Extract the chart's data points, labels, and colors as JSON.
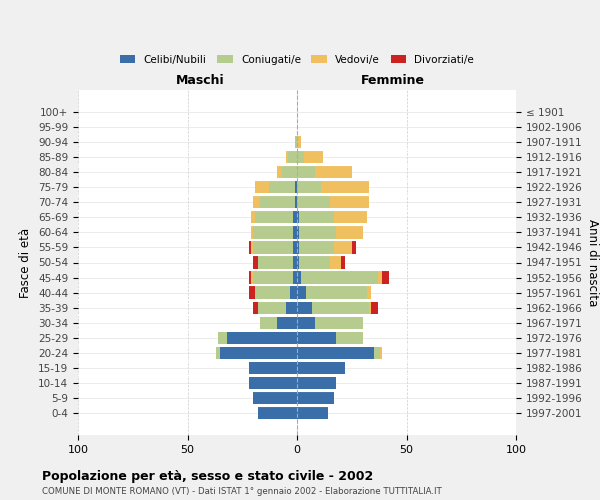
{
  "age_groups": [
    "100+",
    "95-99",
    "90-94",
    "85-89",
    "80-84",
    "75-79",
    "70-74",
    "65-69",
    "60-64",
    "55-59",
    "50-54",
    "45-49",
    "40-44",
    "35-39",
    "30-34",
    "25-29",
    "20-24",
    "15-19",
    "10-14",
    "5-9",
    "0-4"
  ],
  "birth_years": [
    "≤ 1901",
    "1902-1906",
    "1907-1911",
    "1912-1916",
    "1917-1921",
    "1922-1926",
    "1927-1931",
    "1932-1936",
    "1937-1941",
    "1942-1946",
    "1947-1951",
    "1952-1956",
    "1957-1961",
    "1962-1966",
    "1967-1971",
    "1972-1976",
    "1977-1981",
    "1982-1986",
    "1987-1991",
    "1992-1996",
    "1997-2001"
  ],
  "colors": {
    "celibi": "#3a6ea8",
    "coniugati": "#b5cc8e",
    "vedovi": "#f0c060",
    "divorziati": "#cc2222"
  },
  "males": {
    "celibi": [
      0,
      0,
      0,
      0,
      0,
      1,
      1,
      2,
      2,
      2,
      2,
      2,
      3,
      5,
      9,
      32,
      35,
      22,
      22,
      20,
      18
    ],
    "coniugati": [
      0,
      0,
      1,
      4,
      7,
      12,
      16,
      17,
      18,
      18,
      16,
      18,
      16,
      13,
      8,
      4,
      2,
      0,
      0,
      0,
      0
    ],
    "vedovi": [
      0,
      0,
      0,
      1,
      2,
      6,
      3,
      2,
      1,
      1,
      0,
      1,
      0,
      0,
      0,
      0,
      0,
      0,
      0,
      0,
      0
    ],
    "divorziati": [
      0,
      0,
      0,
      0,
      0,
      0,
      0,
      0,
      0,
      1,
      2,
      1,
      3,
      2,
      0,
      0,
      0,
      0,
      0,
      0,
      0
    ]
  },
  "females": {
    "nubili": [
      0,
      0,
      0,
      0,
      0,
      0,
      0,
      1,
      1,
      1,
      1,
      2,
      4,
      7,
      8,
      18,
      35,
      22,
      18,
      17,
      14
    ],
    "coniugate": [
      0,
      0,
      0,
      3,
      8,
      11,
      15,
      16,
      17,
      16,
      14,
      35,
      28,
      26,
      22,
      12,
      3,
      0,
      0,
      0,
      0
    ],
    "vedove": [
      0,
      0,
      2,
      9,
      17,
      22,
      18,
      15,
      12,
      8,
      5,
      2,
      2,
      1,
      0,
      0,
      1,
      0,
      0,
      0,
      0
    ],
    "divorziate": [
      0,
      0,
      0,
      0,
      0,
      0,
      0,
      0,
      0,
      2,
      2,
      3,
      0,
      3,
      0,
      0,
      0,
      0,
      0,
      0,
      0
    ]
  },
  "xlim": [
    -100,
    100
  ],
  "xticks": [
    -100,
    -50,
    0,
    50,
    100
  ],
  "xticklabels": [
    "100",
    "50",
    "0",
    "50",
    "100"
  ],
  "title": "Popolazione per età, sesso e stato civile - 2002",
  "subtitle": "COMUNE DI MONTE ROMANO (VT) - Dati ISTAT 1° gennaio 2002 - Elaborazione TUTTITALIA.IT",
  "ylabel_left": "Fasce di età",
  "ylabel_right": "Anni di nascita",
  "label_maschi": "Maschi",
  "label_femmine": "Femmine",
  "legend_labels": [
    "Celibi/Nubili",
    "Coniugati/e",
    "Vedovi/e",
    "Divorziati/e"
  ],
  "legend_colors": [
    "#3a6ea8",
    "#b5cc8e",
    "#f0c060",
    "#cc2222"
  ],
  "bg_color": "#f0f0f0",
  "plot_bg": "#ffffff"
}
